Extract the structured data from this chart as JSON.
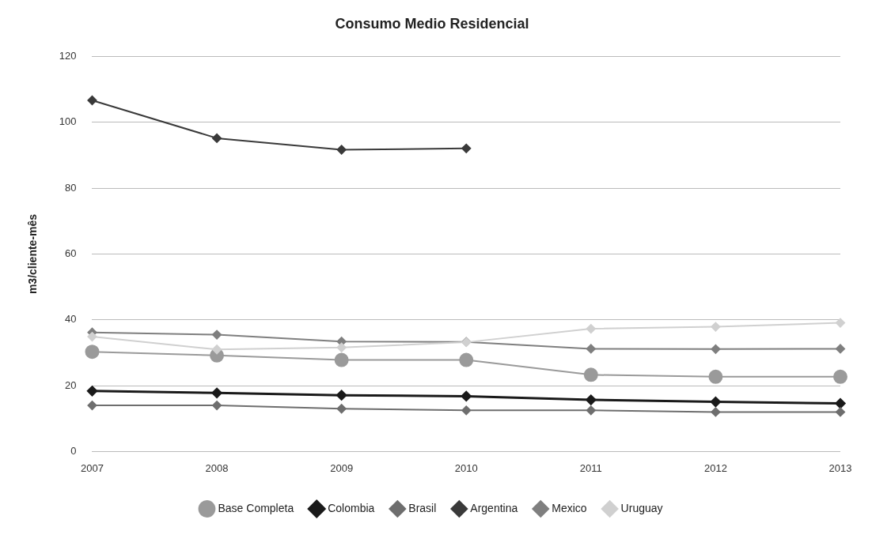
{
  "chart_data": {
    "type": "line",
    "title": "Consumo Medio Residencial",
    "ylabel": "m3/cliente-mês",
    "categories": [
      "2007",
      "2008",
      "2009",
      "2010",
      "2011",
      "2012",
      "2013"
    ],
    "series": [
      {
        "name": "Base Completa",
        "color": "#9a9a9a",
        "marker": "circle",
        "values": [
          30.3,
          29.2,
          27.8,
          27.8,
          23.3,
          22.7,
          22.7
        ]
      },
      {
        "name": "Colombia",
        "color": "#1a1a1a",
        "marker": "diamond",
        "values": [
          18.4,
          17.8,
          17.1,
          16.8,
          15.7,
          15.1,
          14.6
        ]
      },
      {
        "name": "Brasil",
        "color": "#6e6e6e",
        "marker": "diamond",
        "values": [
          14.0,
          14.0,
          13.0,
          12.5,
          12.5,
          12.0,
          12.0
        ]
      },
      {
        "name": "Argentina",
        "color": "#3a3a3a",
        "marker": "diamond",
        "values": [
          106.7,
          95.2,
          91.7,
          92.1,
          null,
          null,
          null
        ]
      },
      {
        "name": "Mexico",
        "color": "#7f7f7f",
        "marker": "diamond",
        "values": [
          36.2,
          35.5,
          33.4,
          33.3,
          31.2,
          31.1,
          31.2
        ]
      },
      {
        "name": "Uruguay",
        "color": "#d0d0d0",
        "marker": "diamond",
        "values": [
          34.9,
          31.0,
          31.6,
          33.2,
          37.3,
          37.9,
          39.1
        ]
      }
    ],
    "ylim": [
      0,
      120
    ],
    "yticks": [
      0,
      20,
      40,
      60,
      80,
      100,
      120
    ],
    "grid": "y",
    "legend": "bottom"
  }
}
